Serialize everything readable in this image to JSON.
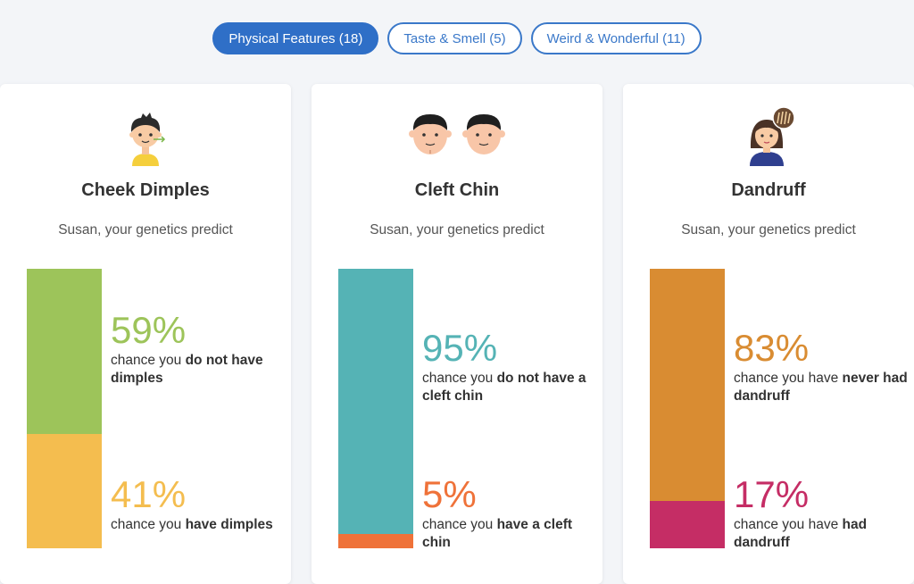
{
  "tabs": [
    {
      "label": "Physical Features (18)",
      "active": true
    },
    {
      "label": "Taste & Smell (5)",
      "active": false
    },
    {
      "label": "Weird & Wonderful (11)",
      "active": false
    }
  ],
  "cards": [
    {
      "title": "Cheek Dimples",
      "subtitle": "Susan, your genetics predict",
      "icon": "dimples-boy-icon",
      "outcomes": [
        {
          "percent": 59,
          "percent_label": "59%",
          "pre": "chance you ",
          "bold": "do not have dimples",
          "color": "#9dc45a"
        },
        {
          "percent": 41,
          "percent_label": "41%",
          "pre": "chance you ",
          "bold": "have dimples",
          "color": "#f4bd4f"
        }
      ]
    },
    {
      "title": "Cleft Chin",
      "subtitle": "Susan, your genetics predict",
      "icon": "cleft-chin-faces-icon",
      "outcomes": [
        {
          "percent": 95,
          "percent_label": "95%",
          "pre": "chance you ",
          "bold": "do not have a cleft chin",
          "color": "#55b3b5"
        },
        {
          "percent": 5,
          "percent_label": "5%",
          "pre": "chance you ",
          "bold": "have a cleft chin",
          "color": "#ef7239"
        }
      ]
    },
    {
      "title": "Dandruff",
      "subtitle": "Susan, your genetics predict",
      "icon": "dandruff-woman-icon",
      "outcomes": [
        {
          "percent": 83,
          "percent_label": "83%",
          "pre": "chance you have ",
          "bold": "never had dandruff",
          "color": "#d98c32"
        },
        {
          "percent": 17,
          "percent_label": "17%",
          "pre": "chance you have ",
          "bold": "had dandruff",
          "color": "#c52d65"
        }
      ]
    }
  ]
}
